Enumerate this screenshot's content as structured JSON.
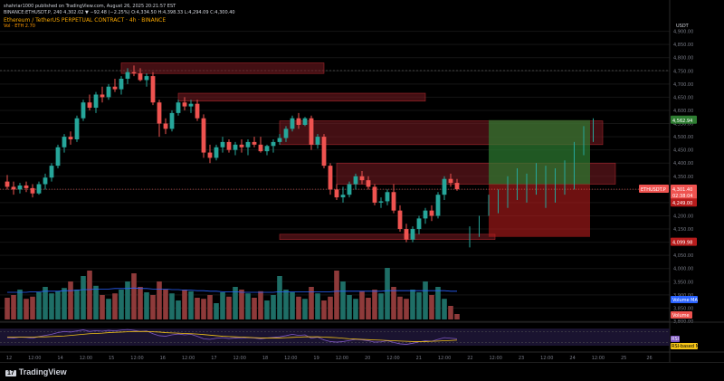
{
  "header": {
    "line1": "shahriar1000 published on TradingView.com, August 26, 2025 20:21:57 EST",
    "line2": "BINANCE:ETHUSDT.P, 240  4,302.02 ▼ −92.48 (−2.25%)  O:4,334.50 H:4,398.33 L:4,294.09 C:4,300.40",
    "line3": "Ethereum / TetherUS PERPETUAL CONTRACT · 4h · BINANCE",
    "line4": "Vol · ETH  2.70"
  },
  "axis_labels": {
    "usdt": "USDT",
    "price_ticks": [
      "4,900.00",
      "4,850.00",
      "4,800.00",
      "4,750.00",
      "4,700.00",
      "4,650.00",
      "4,600.00",
      "4,550.00",
      "4,500.00",
      "4,450.00",
      "4,400.00",
      "4,350.00",
      "4,300.00",
      "4,250.00",
      "4,200.00",
      "4,150.00",
      "4,100.00",
      "4,050.00",
      "4,000.00",
      "3,950.00",
      "3,900.00",
      "3,850.00",
      "3,800.00"
    ],
    "time_ticks": [
      "12",
      "12:00",
      "14",
      "12:00",
      "15",
      "12:00",
      "16",
      "12:00",
      "17",
      "12:00",
      "18",
      "12:00",
      "19",
      "12:00",
      "20",
      "12:00",
      "21",
      "12:00",
      "22",
      "12:00",
      "23",
      "12:00",
      "24",
      "12:00",
      "25",
      "26"
    ],
    "tags": {
      "target": "4,562.94",
      "current_symbol": "ETHUSDT.P",
      "current_price": "4,301.40",
      "countdown": "02:38:04",
      "stop": "4,249.00",
      "low": "4,099.98",
      "volume_ma": "Volume MA",
      "volume": "Volume",
      "rsi": "RSI",
      "rsi_ma": "RSI-based MA"
    }
  },
  "colors": {
    "up": "#26a69a",
    "down": "#ef5350",
    "zone": "#7a1c22",
    "target_zone": "#2e7d32",
    "stop_zone": "#b71c1c",
    "volume_ma": "#2962ff",
    "rsi": "#7e57c2",
    "rsi_ma": "#f5c518",
    "background": "#000000"
  },
  "chart_data": {
    "type": "candlestick",
    "symbol": "ETHUSDT.P",
    "timeframe": "240",
    "ylim": [
      3800,
      4950
    ],
    "candles": [
      {
        "o": 4330,
        "h": 4355,
        "l": 4300,
        "c": 4310
      },
      {
        "o": 4310,
        "h": 4330,
        "l": 4280,
        "c": 4300
      },
      {
        "o": 4300,
        "h": 4325,
        "l": 4285,
        "c": 4315
      },
      {
        "o": 4315,
        "h": 4330,
        "l": 4290,
        "c": 4305
      },
      {
        "o": 4305,
        "h": 4320,
        "l": 4270,
        "c": 4285
      },
      {
        "o": 4285,
        "h": 4330,
        "l": 4280,
        "c": 4320
      },
      {
        "o": 4320,
        "h": 4360,
        "l": 4300,
        "c": 4345
      },
      {
        "o": 4345,
        "h": 4400,
        "l": 4330,
        "c": 4390
      },
      {
        "o": 4390,
        "h": 4470,
        "l": 4380,
        "c": 4460
      },
      {
        "o": 4460,
        "h": 4510,
        "l": 4440,
        "c": 4500
      },
      {
        "o": 4500,
        "h": 4520,
        "l": 4470,
        "c": 4490
      },
      {
        "o": 4490,
        "h": 4580,
        "l": 4480,
        "c": 4570
      },
      {
        "o": 4570,
        "h": 4640,
        "l": 4560,
        "c": 4630
      },
      {
        "o": 4630,
        "h": 4660,
        "l": 4600,
        "c": 4610
      },
      {
        "o": 4610,
        "h": 4670,
        "l": 4590,
        "c": 4660
      },
      {
        "o": 4660,
        "h": 4690,
        "l": 4630,
        "c": 4650
      },
      {
        "o": 4650,
        "h": 4700,
        "l": 4640,
        "c": 4690
      },
      {
        "o": 4690,
        "h": 4720,
        "l": 4670,
        "c": 4680
      },
      {
        "o": 4680,
        "h": 4730,
        "l": 4660,
        "c": 4720
      },
      {
        "o": 4720,
        "h": 4760,
        "l": 4700,
        "c": 4745
      },
      {
        "o": 4745,
        "h": 4770,
        "l": 4730,
        "c": 4740
      },
      {
        "o": 4740,
        "h": 4760,
        "l": 4710,
        "c": 4715
      },
      {
        "o": 4715,
        "h": 4740,
        "l": 4690,
        "c": 4730
      },
      {
        "o": 4730,
        "h": 4745,
        "l": 4620,
        "c": 4630
      },
      {
        "o": 4630,
        "h": 4640,
        "l": 4500,
        "c": 4550
      },
      {
        "o": 4550,
        "h": 4570,
        "l": 4510,
        "c": 4530
      },
      {
        "o": 4530,
        "h": 4600,
        "l": 4520,
        "c": 4590
      },
      {
        "o": 4590,
        "h": 4640,
        "l": 4580,
        "c": 4630
      },
      {
        "o": 4630,
        "h": 4650,
        "l": 4600,
        "c": 4615
      },
      {
        "o": 4615,
        "h": 4640,
        "l": 4590,
        "c": 4625
      },
      {
        "o": 4625,
        "h": 4640,
        "l": 4560,
        "c": 4570
      },
      {
        "o": 4570,
        "h": 4585,
        "l": 4420,
        "c": 4440
      },
      {
        "o": 4440,
        "h": 4470,
        "l": 4400,
        "c": 4420
      },
      {
        "o": 4420,
        "h": 4470,
        "l": 4410,
        "c": 4460
      },
      {
        "o": 4460,
        "h": 4500,
        "l": 4440,
        "c": 4480
      },
      {
        "o": 4480,
        "h": 4490,
        "l": 4440,
        "c": 4450
      },
      {
        "o": 4450,
        "h": 4480,
        "l": 4430,
        "c": 4470
      },
      {
        "o": 4470,
        "h": 4490,
        "l": 4440,
        "c": 4460
      },
      {
        "o": 4460,
        "h": 4490,
        "l": 4430,
        "c": 4480
      },
      {
        "o": 4480,
        "h": 4500,
        "l": 4460,
        "c": 4470
      },
      {
        "o": 4470,
        "h": 4500,
        "l": 4440,
        "c": 4445
      },
      {
        "o": 4445,
        "h": 4470,
        "l": 4430,
        "c": 4465
      },
      {
        "o": 4465,
        "h": 4490,
        "l": 4440,
        "c": 4480
      },
      {
        "o": 4480,
        "h": 4510,
        "l": 4470,
        "c": 4495
      },
      {
        "o": 4495,
        "h": 4540,
        "l": 4480,
        "c": 4530
      },
      {
        "o": 4530,
        "h": 4580,
        "l": 4520,
        "c": 4570
      },
      {
        "o": 4570,
        "h": 4590,
        "l": 4530,
        "c": 4545
      },
      {
        "o": 4545,
        "h": 4575,
        "l": 4540,
        "c": 4570
      },
      {
        "o": 4570,
        "h": 4580,
        "l": 4450,
        "c": 4470
      },
      {
        "o": 4470,
        "h": 4510,
        "l": 4455,
        "c": 4500
      },
      {
        "o": 4500,
        "h": 4510,
        "l": 4380,
        "c": 4390
      },
      {
        "o": 4390,
        "h": 4400,
        "l": 4280,
        "c": 4300
      },
      {
        "o": 4300,
        "h": 4320,
        "l": 4260,
        "c": 4270
      },
      {
        "o": 4270,
        "h": 4310,
        "l": 4250,
        "c": 4280
      },
      {
        "o": 4280,
        "h": 4330,
        "l": 4270,
        "c": 4320
      },
      {
        "o": 4320,
        "h": 4360,
        "l": 4300,
        "c": 4350
      },
      {
        "o": 4350,
        "h": 4370,
        "l": 4320,
        "c": 4335
      },
      {
        "o": 4335,
        "h": 4350,
        "l": 4300,
        "c": 4310
      },
      {
        "o": 4310,
        "h": 4320,
        "l": 4240,
        "c": 4250
      },
      {
        "o": 4250,
        "h": 4270,
        "l": 4230,
        "c": 4255
      },
      {
        "o": 4255,
        "h": 4300,
        "l": 4240,
        "c": 4290
      },
      {
        "o": 4290,
        "h": 4320,
        "l": 4210,
        "c": 4220
      },
      {
        "o": 4220,
        "h": 4240,
        "l": 4140,
        "c": 4150
      },
      {
        "o": 4150,
        "h": 4170,
        "l": 4100,
        "c": 4110
      },
      {
        "o": 4110,
        "h": 4160,
        "l": 4100,
        "c": 4150
      },
      {
        "o": 4150,
        "h": 4200,
        "l": 4130,
        "c": 4190
      },
      {
        "o": 4190,
        "h": 4230,
        "l": 4170,
        "c": 4220
      },
      {
        "o": 4220,
        "h": 4240,
        "l": 4180,
        "c": 4200
      },
      {
        "o": 4200,
        "h": 4290,
        "l": 4190,
        "c": 4280
      },
      {
        "o": 4280,
        "h": 4350,
        "l": 4260,
        "c": 4340
      },
      {
        "o": 4340,
        "h": 4360,
        "l": 4310,
        "c": 4325
      },
      {
        "o": 4325,
        "h": 4340,
        "l": 4295,
        "c": 4301
      }
    ],
    "projection_ticks": [
      {
        "h": 4160,
        "l": 4080
      },
      {
        "h": 4200,
        "l": 4120
      },
      {
        "h": 4280,
        "l": 4200
      },
      {
        "h": 4300,
        "l": 4210
      },
      {
        "h": 4350,
        "l": 4230
      },
      {
        "h": 4380,
        "l": 4260
      },
      {
        "h": 4360,
        "l": 4250
      },
      {
        "h": 4400,
        "l": 4280
      },
      {
        "h": 4390,
        "l": 4230
      },
      {
        "h": 4380,
        "l": 4250
      },
      {
        "h": 4410,
        "l": 4280
      },
      {
        "h": 4480,
        "l": 4300
      },
      {
        "h": 4540,
        "l": 4430
      },
      {
        "h": 4570,
        "l": 4480
      }
    ],
    "zones": [
      {
        "from": 18,
        "to": 50,
        "top": 4780,
        "bottom": 4740,
        "kind": "supply"
      },
      {
        "from": 27,
        "to": 66,
        "top": 4665,
        "bottom": 4635,
        "kind": "supply"
      },
      {
        "from": 43,
        "to": 94,
        "top": 4560,
        "bottom": 4470,
        "kind": "supply"
      },
      {
        "from": 52,
        "to": 96,
        "top": 4400,
        "bottom": 4320,
        "kind": "supply"
      },
      {
        "from": 43,
        "to": 77,
        "top": 4130,
        "bottom": 4110,
        "kind": "supply"
      }
    ],
    "position": {
      "from": 76,
      "to": 92,
      "target": 4562.94,
      "entry": 4320,
      "stop": 4249,
      "stop_floor": 4120
    },
    "volume": [
      40,
      45,
      55,
      38,
      42,
      50,
      60,
      48,
      52,
      58,
      70,
      55,
      80,
      90,
      62,
      45,
      38,
      48,
      55,
      70,
      85,
      60,
      50,
      45,
      70,
      55,
      48,
      35,
      55,
      52,
      40,
      38,
      45,
      30,
      50,
      42,
      60,
      55,
      48,
      40,
      52,
      35,
      45,
      80,
      55,
      50,
      42,
      38,
      60,
      48,
      35,
      42,
      90,
      70,
      45,
      38,
      52,
      40,
      55,
      48,
      95,
      60,
      42,
      38,
      55,
      50,
      70,
      45,
      60,
      38,
      25,
      10
    ],
    "volume_ma": [
      50,
      50,
      50,
      50,
      51,
      51,
      52,
      52,
      52,
      53,
      53,
      54,
      55,
      55,
      56,
      56,
      56,
      57,
      57,
      57,
      58,
      57,
      57,
      56,
      56,
      56,
      55,
      55,
      54,
      54,
      53,
      53,
      52,
      52,
      51,
      51,
      51,
      50,
      50,
      50,
      50,
      50,
      50,
      51,
      51,
      51,
      51,
      51,
      51,
      51,
      51,
      51,
      52,
      52,
      52,
      52,
      52,
      52,
      52,
      52,
      53,
      53,
      53,
      53,
      53,
      53,
      53,
      53,
      53,
      53,
      52,
      52
    ],
    "rsi": [
      48,
      47,
      50,
      49,
      46,
      52,
      56,
      60,
      66,
      70,
      68,
      72,
      76,
      70,
      73,
      71,
      74,
      72,
      75,
      77,
      74,
      70,
      72,
      62,
      55,
      53,
      58,
      61,
      58,
      60,
      53,
      44,
      42,
      46,
      48,
      45,
      47,
      46,
      48,
      47,
      44,
      47,
      49,
      51,
      55,
      60,
      56,
      58,
      46,
      50,
      40,
      34,
      32,
      34,
      38,
      42,
      40,
      37,
      32,
      33,
      37,
      31,
      26,
      24,
      28,
      33,
      37,
      35,
      42,
      48,
      46,
      44
    ],
    "rsi_ma": [
      50,
      50,
      50,
      50,
      50,
      51,
      51,
      52,
      53,
      54,
      56,
      58,
      60,
      62,
      63,
      64,
      66,
      67,
      68,
      69,
      70,
      70,
      70,
      69,
      68,
      66,
      65,
      64,
      63,
      62,
      61,
      59,
      57,
      55,
      53,
      52,
      51,
      50,
      49,
      48,
      47,
      47,
      47,
      47,
      48,
      49,
      50,
      51,
      51,
      51,
      50,
      49,
      48,
      46,
      44,
      43,
      42,
      41,
      40,
      39,
      38,
      37,
      36,
      35,
      34,
      34,
      34,
      35,
      36,
      37,
      38,
      39
    ]
  }
}
